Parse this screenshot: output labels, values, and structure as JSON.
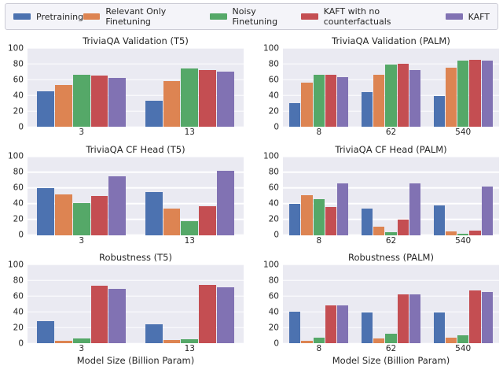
{
  "legend": {
    "items": [
      {
        "label": "Pretraining",
        "color": "#4C72B0"
      },
      {
        "label": "Relevant Only Finetuning",
        "color": "#DD8452"
      },
      {
        "label": "Noisy Finetuning",
        "color": "#55A868"
      },
      {
        "label": "KAFT with no counterfactuals",
        "color": "#C44E52"
      },
      {
        "label": "KAFT",
        "color": "#8172B3"
      }
    ]
  },
  "style": {
    "plot_background": "#EAEAF2",
    "gridline_color": "#FFFFFF",
    "text_color": "#262626"
  },
  "chart_data": [
    {
      "type": "bar",
      "title": "TriviaQA Validation (T5)",
      "categories": [
        "3",
        "13"
      ],
      "series": [
        {
          "name": "Pretraining",
          "values": [
            45,
            33
          ]
        },
        {
          "name": "Relevant Only Finetuning",
          "values": [
            53,
            58
          ]
        },
        {
          "name": "Noisy Finetuning",
          "values": [
            66,
            74
          ]
        },
        {
          "name": "KAFT with no counterfactuals",
          "values": [
            65,
            72
          ]
        },
        {
          "name": "KAFT",
          "values": [
            62,
            70
          ]
        }
      ],
      "xlabel": "",
      "ylabel": "",
      "ylim": [
        0,
        100
      ],
      "yticks": [
        0,
        20,
        40,
        60,
        80,
        100
      ],
      "grid": true,
      "legend_position": "figure-top"
    },
    {
      "type": "bar",
      "title": "TriviaQA Validation (PALM)",
      "categories": [
        "8",
        "62",
        "540"
      ],
      "series": [
        {
          "name": "Pretraining",
          "values": [
            30,
            44,
            39
          ]
        },
        {
          "name": "Relevant Only Finetuning",
          "values": [
            56,
            66,
            75
          ]
        },
        {
          "name": "Noisy Finetuning",
          "values": [
            66,
            79,
            84
          ]
        },
        {
          "name": "KAFT with no counterfactuals",
          "values": [
            66,
            80,
            85
          ]
        },
        {
          "name": "KAFT",
          "values": [
            63,
            72,
            84
          ]
        }
      ],
      "xlabel": "",
      "ylabel": "",
      "ylim": [
        0,
        100
      ],
      "yticks": [
        0,
        20,
        40,
        60,
        80,
        100
      ],
      "grid": true,
      "legend_position": "figure-top"
    },
    {
      "type": "bar",
      "title": "TriviaQA CF Head (T5)",
      "categories": [
        "3",
        "13"
      ],
      "series": [
        {
          "name": "Pretraining",
          "values": [
            60,
            55
          ]
        },
        {
          "name": "Relevant Only Finetuning",
          "values": [
            52,
            34
          ]
        },
        {
          "name": "Noisy Finetuning",
          "values": [
            41,
            18
          ]
        },
        {
          "name": "KAFT with no counterfactuals",
          "values": [
            50,
            37
          ]
        },
        {
          "name": "KAFT",
          "values": [
            75,
            82
          ]
        }
      ],
      "xlabel": "",
      "ylabel": "",
      "ylim": [
        0,
        100
      ],
      "yticks": [
        0,
        20,
        40,
        60,
        80,
        100
      ],
      "grid": true,
      "legend_position": "figure-top"
    },
    {
      "type": "bar",
      "title": "TriviaQA CF Head (PALM)",
      "categories": [
        "8",
        "62",
        "540"
      ],
      "series": [
        {
          "name": "Pretraining",
          "values": [
            40,
            34,
            38
          ]
        },
        {
          "name": "Relevant Only Finetuning",
          "values": [
            51,
            11,
            5
          ]
        },
        {
          "name": "Noisy Finetuning",
          "values": [
            46,
            4,
            2
          ]
        },
        {
          "name": "KAFT with no counterfactuals",
          "values": [
            36,
            20,
            6
          ]
        },
        {
          "name": "KAFT",
          "values": [
            66,
            66,
            62
          ]
        }
      ],
      "xlabel": "",
      "ylabel": "",
      "ylim": [
        0,
        100
      ],
      "yticks": [
        0,
        20,
        40,
        60,
        80,
        100
      ],
      "grid": true,
      "legend_position": "figure-top"
    },
    {
      "type": "bar",
      "title": "Robustness (T5)",
      "categories": [
        "3",
        "13"
      ],
      "series": [
        {
          "name": "Pretraining",
          "values": [
            28,
            24
          ]
        },
        {
          "name": "Relevant Only Finetuning",
          "values": [
            3,
            4
          ]
        },
        {
          "name": "Noisy Finetuning",
          "values": [
            6,
            5
          ]
        },
        {
          "name": "KAFT with no counterfactuals",
          "values": [
            73,
            74
          ]
        },
        {
          "name": "KAFT",
          "values": [
            69,
            71
          ]
        }
      ],
      "xlabel": "Model Size (Billion Param)",
      "ylabel": "",
      "ylim": [
        0,
        100
      ],
      "yticks": [
        0,
        20,
        40,
        60,
        80,
        100
      ],
      "grid": true,
      "legend_position": "figure-top"
    },
    {
      "type": "bar",
      "title": "Robustness (PALM)",
      "categories": [
        "8",
        "62",
        "540"
      ],
      "series": [
        {
          "name": "Pretraining",
          "values": [
            40,
            39,
            39
          ]
        },
        {
          "name": "Relevant Only Finetuning",
          "values": [
            3,
            6,
            7
          ]
        },
        {
          "name": "Noisy Finetuning",
          "values": [
            7,
            12,
            10
          ]
        },
        {
          "name": "KAFT with no counterfactuals",
          "values": [
            48,
            62,
            67
          ]
        },
        {
          "name": "KAFT",
          "values": [
            48,
            62,
            65
          ]
        }
      ],
      "xlabel": "Model Size (Billion Param)",
      "ylabel": "",
      "ylim": [
        0,
        100
      ],
      "yticks": [
        0,
        20,
        40,
        60,
        80,
        100
      ],
      "grid": true,
      "legend_position": "figure-top"
    }
  ]
}
